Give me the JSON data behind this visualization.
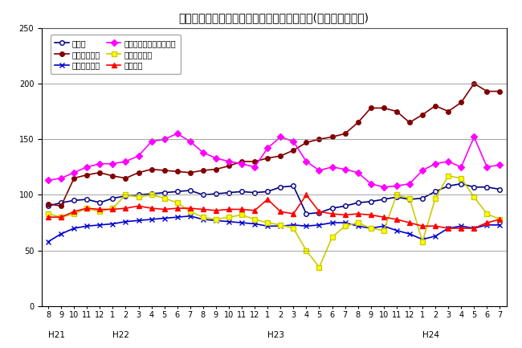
{
  "title": "三重県鉱工業生産及び主要業種別指数の推移(季節調整済指数)",
  "x_labels": [
    "8",
    "9",
    "10",
    "11",
    "12",
    "1",
    "2",
    "3",
    "4",
    "5",
    "6",
    "7",
    "8",
    "9",
    "10",
    "11",
    "12",
    "1",
    "2",
    "3",
    "4",
    "5",
    "6",
    "7",
    "8",
    "9",
    "10",
    "11",
    "12",
    "1",
    "2",
    "3",
    "4",
    "5",
    "6",
    "7"
  ],
  "year_labels": [
    [
      "H21",
      0
    ],
    [
      "H22",
      5
    ],
    [
      "H23",
      17
    ],
    [
      "H24",
      29
    ]
  ],
  "ylim": [
    0,
    250
  ],
  "yticks": [
    0,
    50,
    100,
    150,
    200,
    250
  ],
  "series": {
    "鉱工業": {
      "color": "#000080",
      "marker": "o",
      "markerfacecolor": "white",
      "markeredgecolor": "#000080",
      "linewidth": 1.2,
      "markersize": 4,
      "values": [
        90,
        93,
        95,
        96,
        93,
        97,
        99,
        100,
        101,
        102,
        103,
        104,
        100,
        101,
        102,
        103,
        102,
        103,
        107,
        108,
        83,
        84,
        88,
        90,
        93,
        94,
        96,
        98,
        96,
        97,
        103,
        108,
        110,
        107,
        107,
        105
      ]
    },
    "一般機械工業": {
      "color": "#800000",
      "marker": "o",
      "markerfacecolor": "#800000",
      "markeredgecolor": "#800000",
      "linewidth": 1.2,
      "markersize": 4,
      "values": [
        92,
        90,
        115,
        118,
        120,
        117,
        115,
        120,
        123,
        122,
        121,
        120,
        122,
        123,
        126,
        130,
        130,
        133,
        135,
        140,
        147,
        150,
        152,
        155,
        165,
        178,
        178,
        175,
        165,
        172,
        180,
        175,
        183,
        200,
        193,
        193
      ]
    },
    "電気機械工業": {
      "color": "#0000CD",
      "marker": "x",
      "markerfacecolor": "#0000CD",
      "markeredgecolor": "#0000CD",
      "linewidth": 1.2,
      "markersize": 4,
      "values": [
        58,
        65,
        70,
        72,
        73,
        74,
        76,
        77,
        78,
        79,
        80,
        81,
        78,
        77,
        76,
        75,
        74,
        72,
        72,
        73,
        72,
        73,
        75,
        75,
        72,
        70,
        72,
        68,
        65,
        60,
        63,
        70,
        72,
        70,
        73,
        73
      ]
    },
    "電子部品・デバイス工業": {
      "color": "#FF00FF",
      "marker": "D",
      "markerfacecolor": "#FF00FF",
      "markeredgecolor": "#FF00FF",
      "linewidth": 1.2,
      "markersize": 4,
      "values": [
        113,
        115,
        120,
        125,
        128,
        128,
        130,
        135,
        148,
        150,
        155,
        148,
        138,
        133,
        130,
        128,
        125,
        142,
        152,
        148,
        130,
        122,
        125,
        123,
        120,
        110,
        107,
        108,
        110,
        122,
        128,
        130,
        125,
        152,
        125,
        127
      ]
    },
    "輸送機械工業": {
      "color": "#CCCC00",
      "marker": "s",
      "markerfacecolor": "#FFFF00",
      "markeredgecolor": "#CCCC00",
      "linewidth": 1.2,
      "markersize": 4,
      "values": [
        83,
        80,
        83,
        88,
        85,
        88,
        100,
        98,
        100,
        97,
        93,
        85,
        80,
        78,
        80,
        82,
        78,
        75,
        73,
        70,
        50,
        35,
        62,
        72,
        75,
        70,
        68,
        100,
        97,
        58,
        97,
        117,
        115,
        98,
        83,
        78
      ]
    },
    "化学工業": {
      "color": "#FF0000",
      "marker": "^",
      "markerfacecolor": "#FF0000",
      "markeredgecolor": "#FF0000",
      "linewidth": 1.2,
      "markersize": 4,
      "values": [
        80,
        80,
        85,
        88,
        87,
        87,
        88,
        90,
        88,
        87,
        88,
        88,
        87,
        86,
        87,
        87,
        86,
        96,
        85,
        83,
        100,
        85,
        83,
        82,
        83,
        82,
        80,
        78,
        75,
        72,
        72,
        70,
        70,
        70,
        75,
        78
      ]
    }
  },
  "legend_order": [
    "鉱工業",
    "一般機械工業",
    "電気機械工業",
    "電子部品・デバイス工業",
    "輸送機械工業",
    "化学工業"
  ],
  "grid_color": "#808080",
  "background_color": "#ffffff",
  "title_fontsize": 10,
  "axis_fontsize": 7,
  "legend_fontsize": 7
}
